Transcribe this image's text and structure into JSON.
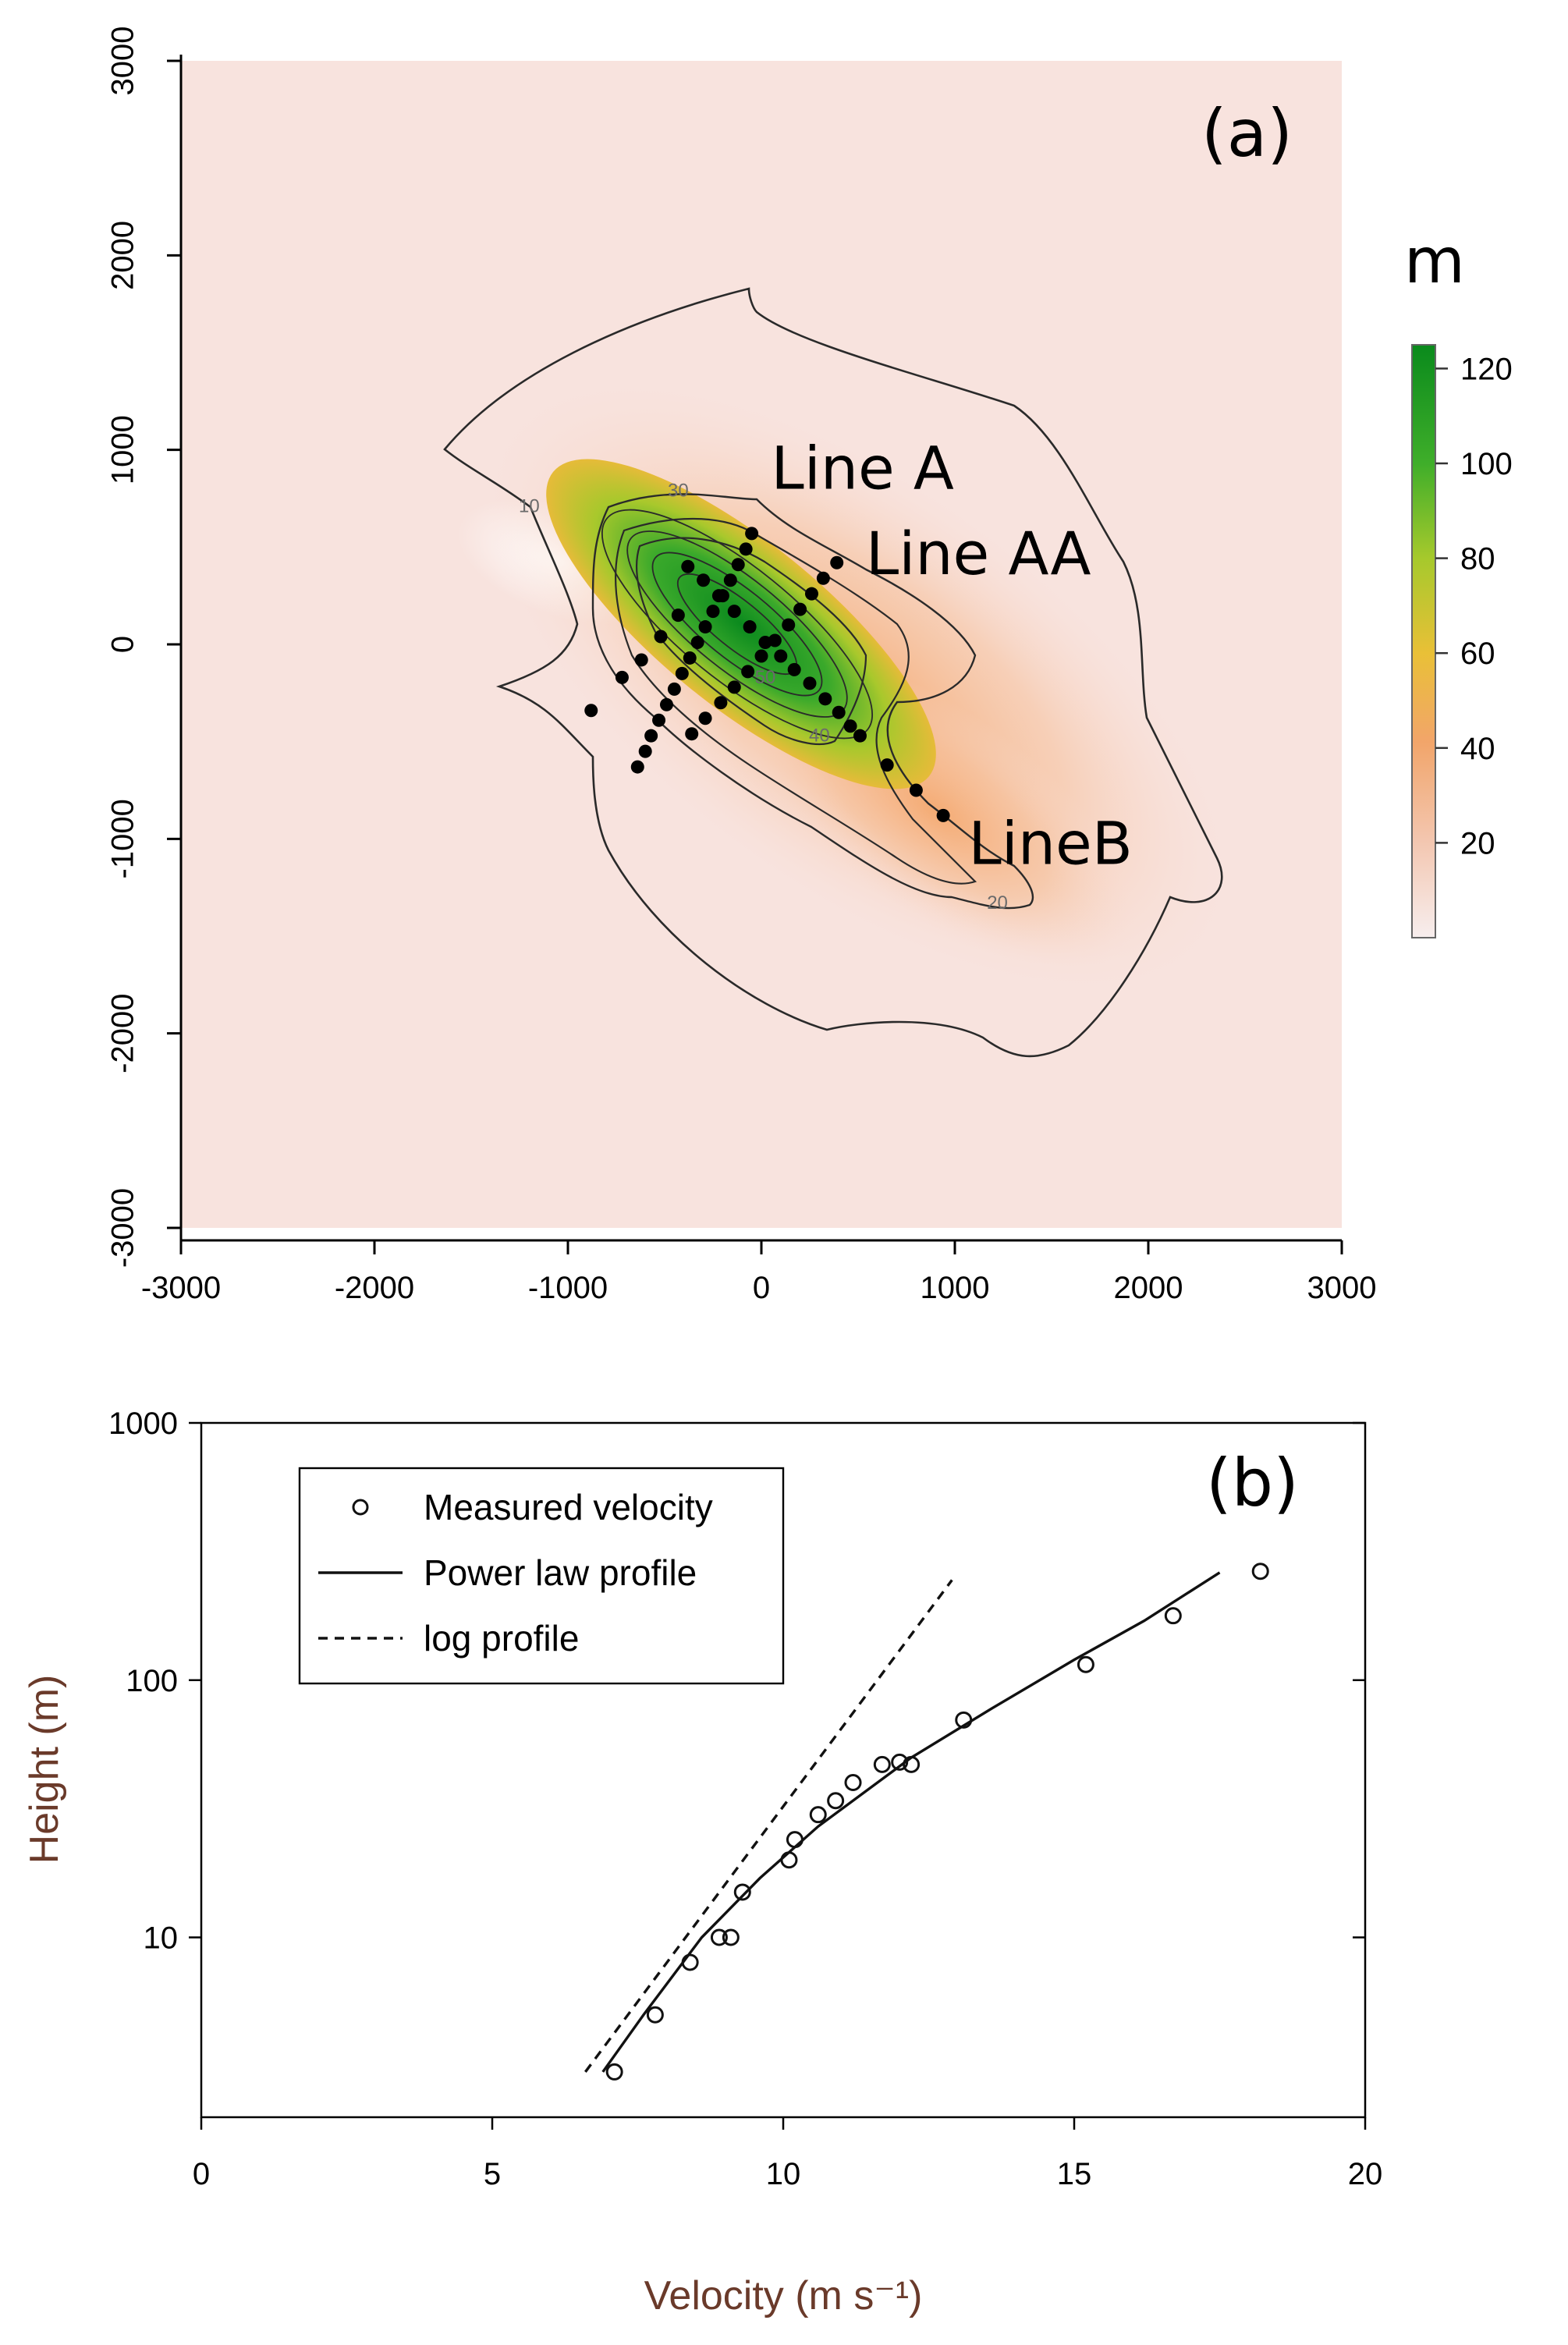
{
  "chart_data": [
    {
      "panel": "(a)",
      "type": "heatmap",
      "title": "",
      "xlabel": "",
      "ylabel": "",
      "xlim": [
        -3000,
        3000
      ],
      "ylim": [
        -3000,
        3000
      ],
      "x_ticks": [
        -3000,
        -2000,
        -1000,
        0,
        1000,
        2000,
        3000
      ],
      "y_ticks": [
        -3000,
        -2000,
        -1000,
        0,
        1000,
        2000,
        3000
      ],
      "colorbar": {
        "unit": "m",
        "ticks": [
          20,
          40,
          60,
          80,
          100,
          120
        ],
        "range": [
          0,
          125
        ],
        "colors": [
          "#f7eeee",
          "#f3c7b1",
          "#f2a56a",
          "#e9c037",
          "#a6c92c",
          "#3fae2a",
          "#0a8a1c"
        ]
      },
      "contour_labels": [
        {
          "text": "10",
          "x": -1200,
          "y": 680
        },
        {
          "text": "30",
          "x": -430,
          "y": 760
        },
        {
          "text": "20",
          "x": 1220,
          "y": -1360
        },
        {
          "text": "40",
          "x": 300,
          "y": -500
        },
        {
          "text": "50",
          "x": 20,
          "y": -200
        }
      ],
      "lines": [
        {
          "name": "Line A",
          "label_at": {
            "x": 50,
            "y": 800
          },
          "points": [
            {
              "x": -50,
              "y": 570
            },
            {
              "x": -80,
              "y": 490
            },
            {
              "x": -120,
              "y": 410
            },
            {
              "x": -160,
              "y": 330
            },
            {
              "x": -200,
              "y": 250
            },
            {
              "x": -250,
              "y": 170
            },
            {
              "x": -290,
              "y": 90
            },
            {
              "x": -330,
              "y": 10
            },
            {
              "x": -370,
              "y": -70
            },
            {
              "x": -410,
              "y": -150
            },
            {
              "x": -450,
              "y": -230
            },
            {
              "x": -490,
              "y": -310
            },
            {
              "x": -530,
              "y": -390
            },
            {
              "x": -570,
              "y": -470
            },
            {
              "x": -600,
              "y": -550
            },
            {
              "x": -640,
              "y": -630
            }
          ]
        },
        {
          "name": "Line AA",
          "label_at": {
            "x": 540,
            "y": 360
          },
          "points": [
            {
              "x": 390,
              "y": 420
            },
            {
              "x": 320,
              "y": 340
            },
            {
              "x": 260,
              "y": 260
            },
            {
              "x": 200,
              "y": 180
            },
            {
              "x": 140,
              "y": 100
            },
            {
              "x": 70,
              "y": 20
            },
            {
              "x": 0,
              "y": -60
            },
            {
              "x": -70,
              "y": -140
            },
            {
              "x": -140,
              "y": -220
            },
            {
              "x": -210,
              "y": -300
            },
            {
              "x": -290,
              "y": -380
            },
            {
              "x": -360,
              "y": -460
            }
          ]
        },
        {
          "name": "LineB",
          "label_at": {
            "x": 1070,
            "y": -1130
          },
          "points": [
            {
              "x": -880,
              "y": -340
            },
            {
              "x": -720,
              "y": -170
            },
            {
              "x": -620,
              "y": -80
            },
            {
              "x": -520,
              "y": 40
            },
            {
              "x": -430,
              "y": 150
            },
            {
              "x": -380,
              "y": 400
            },
            {
              "x": -300,
              "y": 330
            },
            {
              "x": -220,
              "y": 250
            },
            {
              "x": -140,
              "y": 170
            },
            {
              "x": -60,
              "y": 90
            },
            {
              "x": 20,
              "y": 10
            },
            {
              "x": 100,
              "y": -60
            },
            {
              "x": 170,
              "y": -130
            },
            {
              "x": 250,
              "y": -200
            },
            {
              "x": 330,
              "y": -280
            },
            {
              "x": 400,
              "y": -350
            },
            {
              "x": 460,
              "y": -420
            },
            {
              "x": 510,
              "y": -470
            },
            {
              "x": 650,
              "y": -620
            },
            {
              "x": 800,
              "y": -750
            },
            {
              "x": 940,
              "y": -880
            }
          ]
        }
      ]
    },
    {
      "panel": "(b)",
      "type": "scatter",
      "title": "",
      "xlabel": "Velocity (m s⁻¹)",
      "ylabel": "Height (m)",
      "xlim": [
        0,
        20
      ],
      "ylim": [
        2,
        1000
      ],
      "y_scale": "log",
      "x_ticks": [
        0,
        5,
        10,
        15,
        20
      ],
      "y_ticks": [
        10,
        100,
        1000
      ],
      "legend": {
        "placement": "top-left",
        "entries": [
          "Measured velocity",
          "Power law profile",
          "log profile"
        ]
      },
      "series": [
        {
          "name": "Measured velocity",
          "style": "open-circle",
          "points": [
            {
              "x": 7.1,
              "y": 3
            },
            {
              "x": 7.8,
              "y": 5
            },
            {
              "x": 8.4,
              "y": 8
            },
            {
              "x": 8.9,
              "y": 10
            },
            {
              "x": 9.1,
              "y": 10
            },
            {
              "x": 9.3,
              "y": 15
            },
            {
              "x": 10.1,
              "y": 20
            },
            {
              "x": 10.2,
              "y": 24
            },
            {
              "x": 10.6,
              "y": 30
            },
            {
              "x": 10.9,
              "y": 34
            },
            {
              "x": 11.2,
              "y": 40
            },
            {
              "x": 11.7,
              "y": 47
            },
            {
              "x": 12.0,
              "y": 48
            },
            {
              "x": 12.2,
              "y": 47
            },
            {
              "x": 13.1,
              "y": 70
            },
            {
              "x": 15.2,
              "y": 115
            },
            {
              "x": 16.7,
              "y": 178
            },
            {
              "x": 18.2,
              "y": 265
            }
          ]
        },
        {
          "name": "Power law profile",
          "style": "solid",
          "points": [
            {
              "x": 6.9,
              "y": 3
            },
            {
              "x": 7.6,
              "y": 5
            },
            {
              "x": 8.6,
              "y": 10
            },
            {
              "x": 9.6,
              "y": 17
            },
            {
              "x": 10.6,
              "y": 27
            },
            {
              "x": 12.2,
              "y": 50
            },
            {
              "x": 13.6,
              "y": 78
            },
            {
              "x": 15.0,
              "y": 120
            },
            {
              "x": 16.2,
              "y": 170
            },
            {
              "x": 17.5,
              "y": 262
            }
          ]
        },
        {
          "name": "log profile",
          "style": "dashed",
          "points": [
            {
              "x": 6.6,
              "y": 3
            },
            {
              "x": 12.9,
              "y": 245
            }
          ]
        }
      ]
    }
  ]
}
